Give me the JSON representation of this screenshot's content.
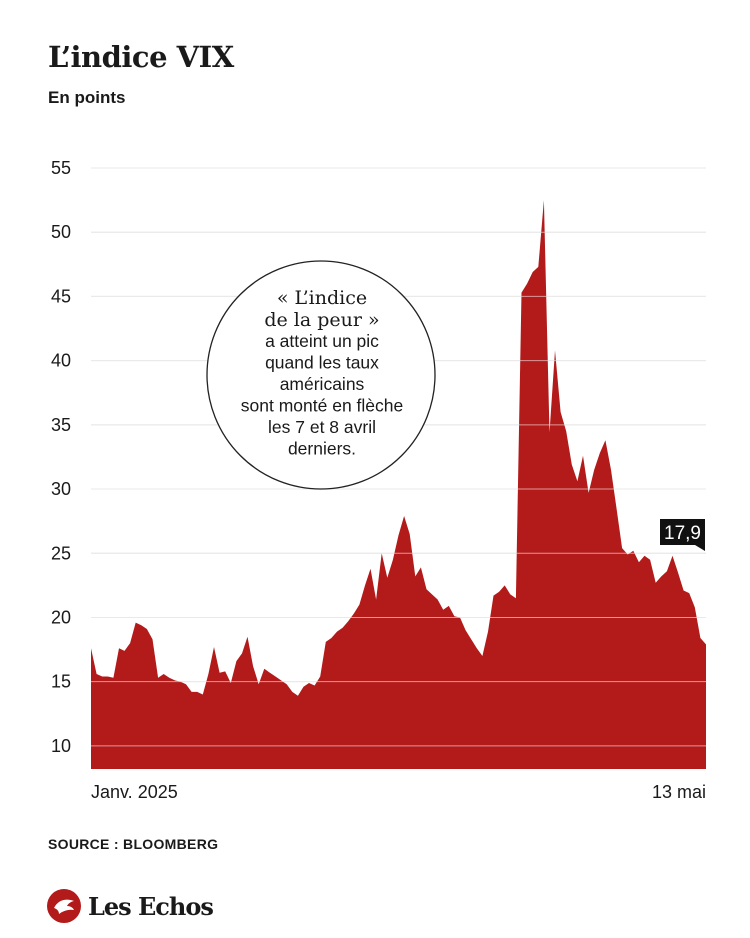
{
  "header": {
    "title": "L’indice VIX",
    "subtitle": "En points"
  },
  "annotation": {
    "quote": [
      "« L’indice",
      "de la peur »"
    ],
    "body": [
      "a atteint un pic",
      "quand les taux",
      "américains",
      "sont monté en flèche",
      "les 7 et 8 avril",
      "derniers."
    ]
  },
  "footer": {
    "source": "SOURCE : BLOOMBERG",
    "brand": "Les Echos"
  },
  "colors": {
    "area": "#b31b1b",
    "gridline": "#cfcfcf",
    "text": "#1a1a1a",
    "last_label_bg": "#111111"
  },
  "chart_data": {
    "type": "area",
    "title": "L’indice VIX",
    "ylabel": "En points",
    "ylim": [
      8.2,
      55
    ],
    "yticks": [
      10,
      15,
      20,
      25,
      30,
      35,
      40,
      45,
      50,
      55
    ],
    "ytick_labels": [
      "10",
      "15",
      "20",
      "25",
      "30",
      "35",
      "40",
      "45",
      "50",
      "55"
    ],
    "x_labels": [
      "Janv. 2025",
      "13 mai"
    ],
    "x_range": [
      "2025-01-02",
      "2025-05-13"
    ],
    "last_value_label": "17,9",
    "grid": true,
    "series": [
      {
        "values": [
          17.6,
          15.6,
          15.4,
          15.4,
          15.3,
          17.6,
          17.4,
          18.0,
          19.6,
          19.4,
          19.1,
          18.3,
          15.3,
          15.6,
          15.3,
          15.1,
          15.0,
          14.8,
          14.2,
          14.2,
          14.0,
          15.6,
          17.7,
          15.7,
          15.8,
          14.9,
          16.6,
          17.2,
          18.5,
          16.2,
          14.8,
          16.0,
          15.7,
          15.4,
          15.1,
          14.8,
          14.2,
          13.9,
          14.6,
          14.9,
          14.7,
          15.4,
          18.1,
          18.4,
          18.9,
          19.2,
          19.7,
          20.3,
          21.0,
          22.5,
          23.8,
          21.4,
          25.0,
          23.1,
          24.5,
          26.4,
          27.9,
          26.5,
          23.2,
          23.9,
          22.2,
          21.8,
          21.4,
          20.6,
          20.9,
          20.1,
          20.0,
          19.0,
          18.3,
          17.6,
          17.0,
          18.9,
          21.7,
          22.0,
          22.5,
          21.8,
          21.5,
          45.3,
          46.0,
          46.9,
          47.3,
          52.5,
          34.4,
          40.8,
          36.0,
          34.5,
          31.9,
          30.6,
          32.6,
          29.7,
          31.5,
          32.8,
          33.8,
          31.5,
          28.5,
          25.4,
          24.9,
          25.2,
          24.3,
          24.8,
          24.5,
          22.7,
          23.2,
          23.6,
          24.8,
          23.5,
          22.1,
          21.9,
          20.8,
          18.4,
          17.9
        ]
      }
    ]
  }
}
